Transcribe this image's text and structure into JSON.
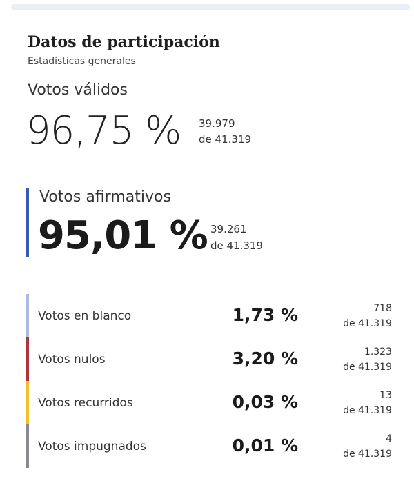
{
  "header": {
    "title": "Datos de participación",
    "subtitle": "Estadísticas generales"
  },
  "valid": {
    "label": "Votos válidos",
    "percent": "96,75 %",
    "count": "39.979",
    "of_total": "de 41.319"
  },
  "affirmative": {
    "label": "Votos afirmativos",
    "percent": "95,01 %",
    "count": "39.261",
    "of_total": "de 41.319",
    "accent_color": "#3b5ab8"
  },
  "rows": [
    {
      "label": "Votos en blanco",
      "percent": "1,73 %",
      "count": "718",
      "of_total": "de 41.319",
      "color": "#a9bce0"
    },
    {
      "label": "Votos nulos",
      "percent": "3,20 %",
      "count": "1.323",
      "of_total": "de 41.319",
      "color": "#b0343d"
    },
    {
      "label": "Votos recurridos",
      "percent": "0,03 %",
      "count": "13",
      "of_total": "de 41.319",
      "color": "#efc12b"
    },
    {
      "label": "Votos impugnados",
      "percent": "0,01 %",
      "count": "4",
      "of_total": "de 41.319",
      "color": "#8a8a90"
    }
  ]
}
